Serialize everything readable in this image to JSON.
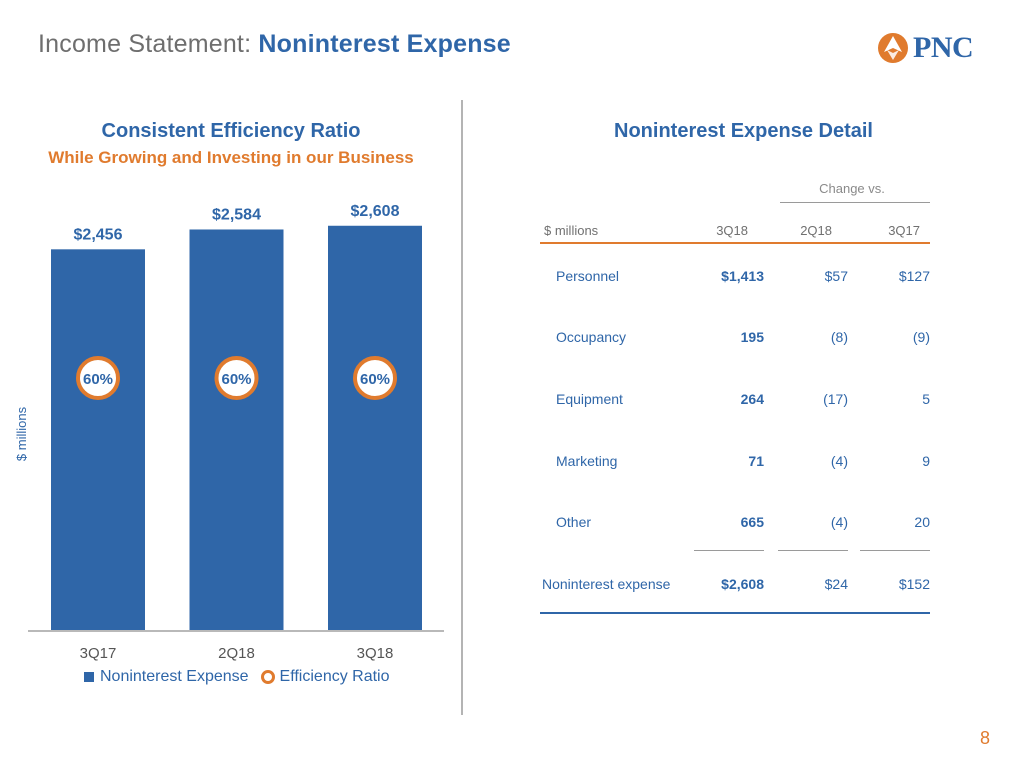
{
  "header": {
    "title_prefix": "Income Statement:",
    "title_main": "Noninterest Expense",
    "logo_text": "PNC"
  },
  "left_panel": {
    "heading": "Consistent Efficiency Ratio",
    "subheading": "While Growing and Investing in our Business",
    "ylabel": "$ millions",
    "legend": {
      "bar": "Noninterest Expense",
      "ring": "Efficiency Ratio"
    }
  },
  "chart_data": {
    "type": "bar",
    "categories": [
      "3Q17",
      "2Q18",
      "3Q18"
    ],
    "series": [
      {
        "name": "Noninterest Expense",
        "values": [
          2456,
          2584,
          2608
        ],
        "labels": [
          "$2,456",
          "$2,584",
          "$2,608"
        ]
      },
      {
        "name": "Efficiency Ratio",
        "values": [
          60,
          60,
          60
        ],
        "labels": [
          "60%",
          "60%",
          "60%"
        ]
      }
    ],
    "ylabel": "$ millions",
    "ylim": [
      0,
      2800
    ],
    "legend_position": "bottom",
    "colors": {
      "bar": "#2f66a8",
      "ring": "#e07b2e"
    }
  },
  "right_panel": {
    "heading": "Noninterest Expense Detail",
    "change_vs": "Change vs.",
    "columns": [
      "$ millions",
      "3Q18",
      "2Q18",
      "3Q17"
    ],
    "rows": [
      {
        "label": "Personnel",
        "q3_18": "$1,413",
        "vs_2q18": "$57",
        "vs_3q17": "$127"
      },
      {
        "label": "Occupancy",
        "q3_18": "195",
        "vs_2q18": "(8)",
        "vs_3q17": "(9)"
      },
      {
        "label": "Equipment",
        "q3_18": "264",
        "vs_2q18": "(17)",
        "vs_3q17": "5"
      },
      {
        "label": "Marketing",
        "q3_18": "71",
        "vs_2q18": "(4)",
        "vs_3q17": "9"
      },
      {
        "label": "Other",
        "q3_18": "665",
        "vs_2q18": "(4)",
        "vs_3q17": "20"
      }
    ],
    "total": {
      "label": "Noninterest expense",
      "q3_18": "$2,608",
      "vs_2q18": "$24",
      "vs_3q17": "$152"
    }
  },
  "page_number": "8",
  "colors": {
    "blue": "#2f66a8",
    "orange": "#e07b2e"
  }
}
